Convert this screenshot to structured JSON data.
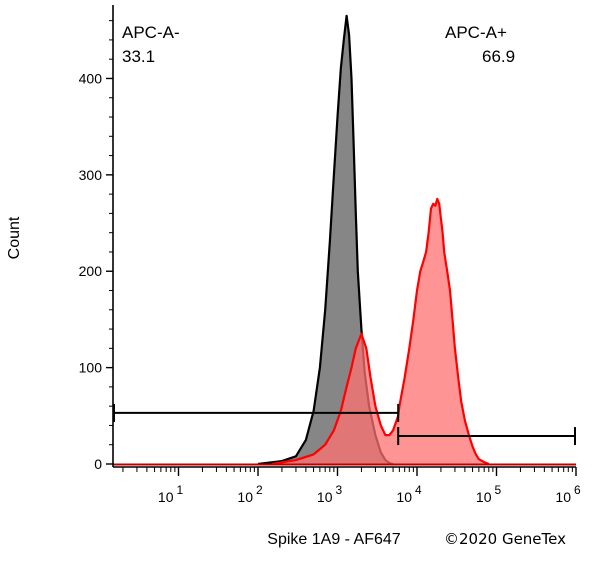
{
  "chart_data": {
    "type": "area",
    "xlabel": "Spike 1A9 - AF647",
    "ylabel": "Count",
    "x_scale": "log",
    "x_ticks": [
      {
        "base": "10",
        "exp": "1",
        "value": 10
      },
      {
        "base": "10",
        "exp": "2",
        "value": 100
      },
      {
        "base": "10",
        "exp": "3",
        "value": 1000
      },
      {
        "base": "10",
        "exp": "4",
        "value": 10000
      },
      {
        "base": "10",
        "exp": "5",
        "value": 100000
      },
      {
        "base": "10",
        "exp": "6",
        "value": 1000000
      }
    ],
    "y_ticks": [
      "0",
      "100",
      "200",
      "300",
      "400"
    ],
    "ylim": [
      0,
      470
    ],
    "xlim": [
      1.5,
      1000000
    ],
    "series": [
      {
        "color": "#000000",
        "fill": "#808080",
        "x": [
          100,
          200,
          300,
          400,
          500,
          600,
          700,
          800,
          900,
          1000,
          1100,
          1200,
          1300,
          1400,
          1500,
          1600,
          1700,
          1800,
          2000,
          2200,
          2500,
          3000,
          3500,
          4000,
          4500,
          5000
        ],
        "y": [
          0,
          3,
          8,
          25,
          55,
          100,
          160,
          230,
          300,
          360,
          410,
          440,
          465,
          445,
          400,
          330,
          260,
          200,
          140,
          95,
          60,
          30,
          12,
          4,
          1,
          0
        ]
      },
      {
        "color": "#ff0000",
        "fill": "#ff7070",
        "x": [
          150,
          300,
          500,
          700,
          900,
          1100,
          1300,
          1500,
          1700,
          2000,
          2300,
          2600,
          3000,
          3500,
          4000,
          4500,
          5000,
          5800,
          6000,
          7000,
          8000,
          9000,
          10000,
          11000,
          12000,
          13000,
          14000,
          15000,
          16000,
          17000,
          18000,
          19000,
          20000,
          21000,
          22000,
          24000,
          26000,
          28000,
          30000,
          33000,
          36000,
          40000,
          45000,
          50000,
          55000,
          60000,
          70000,
          80000
        ],
        "y": [
          0,
          4,
          10,
          20,
          35,
          55,
          80,
          100,
          120,
          135,
          120,
          90,
          60,
          40,
          30,
          30,
          35,
          50,
          60,
          90,
          120,
          150,
          180,
          200,
          210,
          220,
          240,
          265,
          270,
          268,
          275,
          270,
          255,
          240,
          220,
          200,
          180,
          150,
          120,
          90,
          65,
          45,
          30,
          18,
          10,
          5,
          2,
          0
        ]
      }
    ],
    "gates": [
      {
        "name": "APC-A-",
        "percent": "33.1",
        "x_start": 1.5,
        "x_end": 5800,
        "level": 53
      },
      {
        "name": "APC-A+",
        "percent": "66.9",
        "x_start": 5800,
        "x_end": 1000000,
        "level": 29
      }
    ]
  },
  "labels": {
    "gate_neg_name": "APC-A-",
    "gate_neg_pct": "33.1",
    "gate_pos_name": "APC-A+",
    "gate_pos_pct": "66.9",
    "credit": "©2020 GeneTex"
  }
}
